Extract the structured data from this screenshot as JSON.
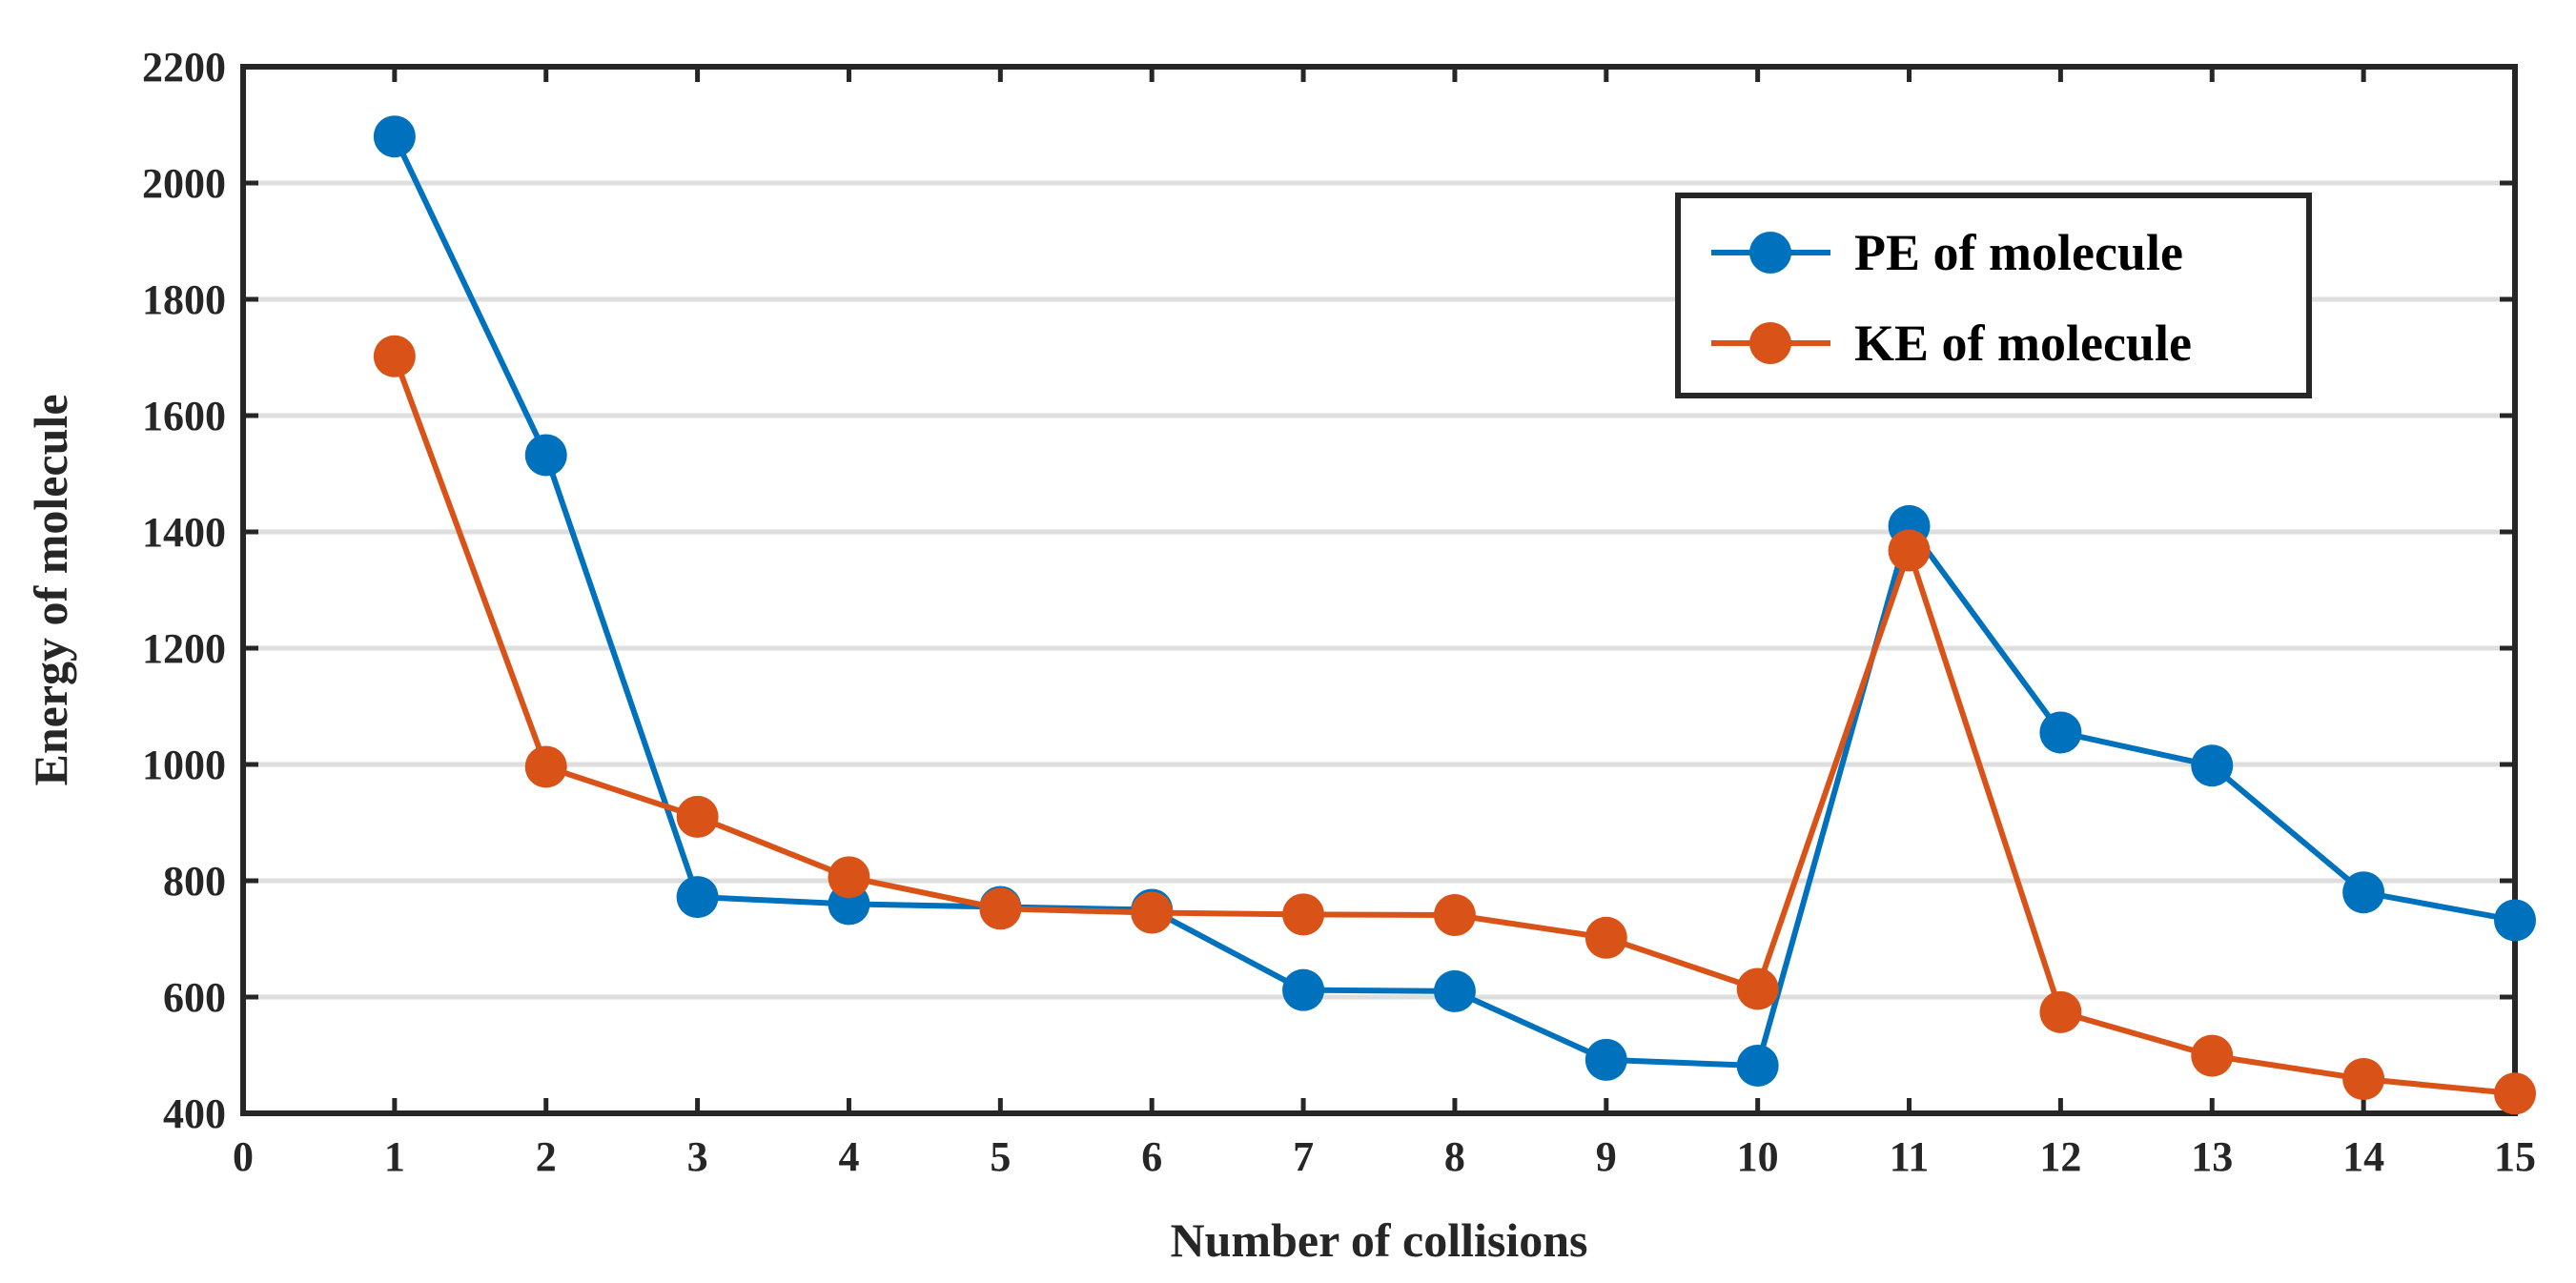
{
  "chart_data": {
    "type": "line",
    "title": "",
    "xlabel": "Number of collisions",
    "ylabel": "Energy of molecule",
    "xlim": [
      0,
      15
    ],
    "ylim": [
      400,
      2200
    ],
    "xticks": [
      0,
      1,
      2,
      3,
      4,
      5,
      6,
      7,
      8,
      9,
      10,
      11,
      12,
      13,
      14,
      15
    ],
    "yticks": [
      400,
      600,
      800,
      1000,
      1200,
      1400,
      1600,
      1800,
      2000,
      2200
    ],
    "grid": "horizontal",
    "legend_position": "top-right",
    "x": [
      1,
      2,
      3,
      4,
      5,
      6,
      7,
      8,
      9,
      10,
      11,
      12,
      13,
      14,
      15
    ],
    "series": [
      {
        "name": "PE of molecule",
        "color": "#0072BD",
        "values": [
          2080,
          1532,
          772,
          760,
          755,
          750,
          612,
          610,
          492,
          482,
          1410,
          1055,
          998,
          780,
          732
        ]
      },
      {
        "name": "KE of molecule",
        "color": "#D95319",
        "values": [
          1702,
          996,
          910,
          806,
          752,
          745,
          742,
          741,
          702,
          614,
          1368,
          574,
          499,
          459,
          434
        ]
      }
    ]
  }
}
